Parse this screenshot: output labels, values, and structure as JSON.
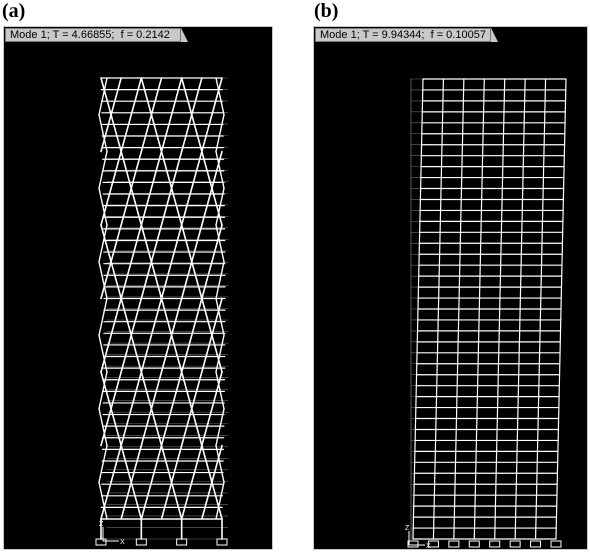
{
  "panels": [
    {
      "label": "(a)",
      "title": "Mode 1; T = 4.66855;  f = 0.2142",
      "type": "diagrid-frame",
      "mode": 1,
      "period": 4.66855,
      "frequency": 0.2142
    },
    {
      "label": "(b)",
      "title": "Mode 1; T = 9.94344;  f = 0.10057",
      "type": "rigid-frame",
      "mode": 1,
      "period": 9.94344,
      "frequency": 0.10057
    }
  ],
  "axes_triad": {
    "z_label": "Z",
    "x_label": "X"
  },
  "colors": {
    "background": "#000000",
    "frame": "#ffffff",
    "undeformed": "#6e6e6e",
    "titlebar": "#c9c9c9"
  }
}
